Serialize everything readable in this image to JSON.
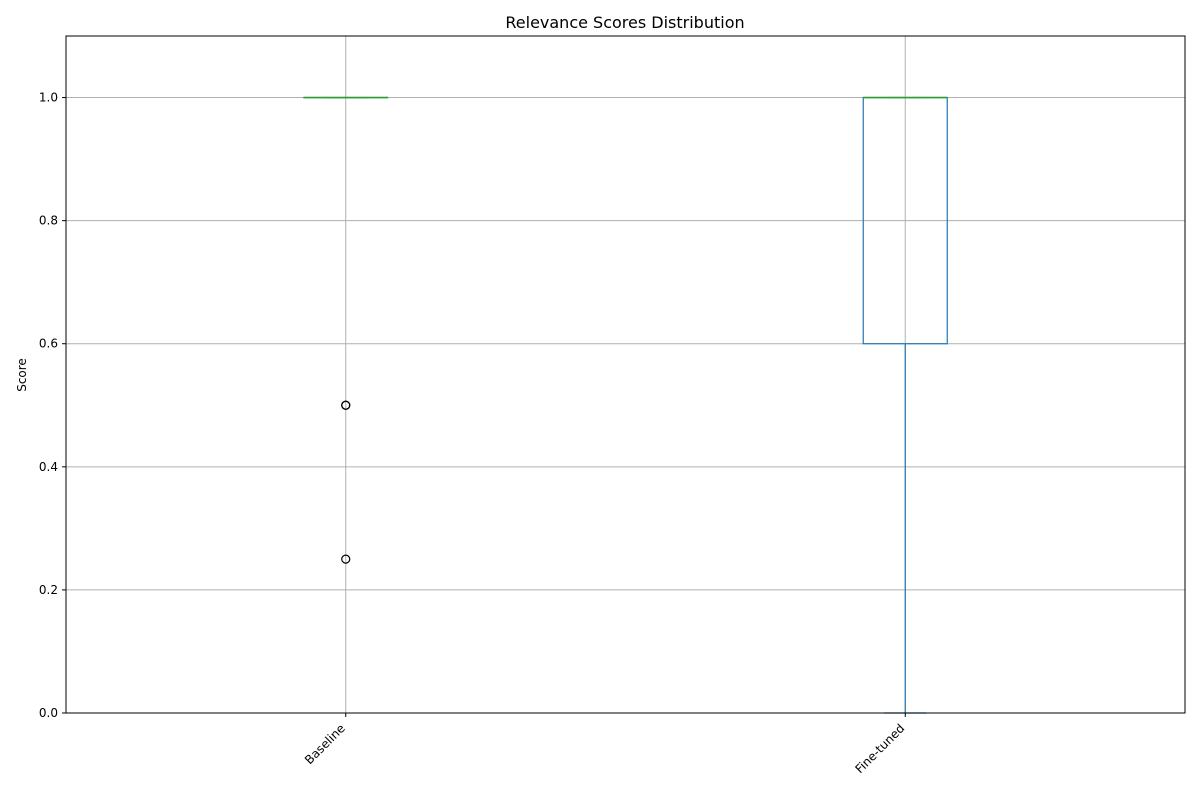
{
  "chart_data": {
    "type": "box",
    "title": "Relevance Scores Distribution",
    "xlabel": "",
    "ylabel": "Score",
    "ylim": [
      0.0,
      1.1
    ],
    "yticks": [
      0.0,
      0.2,
      0.4,
      0.6,
      0.8,
      1.0
    ],
    "ytick_labels": [
      "0.0",
      "0.2",
      "0.4",
      "0.6",
      "0.8",
      "1.0"
    ],
    "grid": true,
    "categories": [
      "Baseline",
      "Fine-tuned"
    ],
    "boxes": [
      {
        "category": "Baseline",
        "whisker_low": 1.0,
        "q1": 1.0,
        "median": 1.0,
        "q3": 1.0,
        "whisker_high": 1.0,
        "outliers": [
          0.5,
          0.5,
          0.25
        ]
      },
      {
        "category": "Fine-tuned",
        "whisker_low": 0.0,
        "q1": 0.6,
        "median": 1.0,
        "q3": 1.0,
        "whisker_high": 1.0,
        "outliers": []
      }
    ],
    "colors": {
      "box": "#1f77b4",
      "median": "#2ca02c",
      "grid": "#b0b0b0",
      "outlier": "#000000"
    }
  }
}
